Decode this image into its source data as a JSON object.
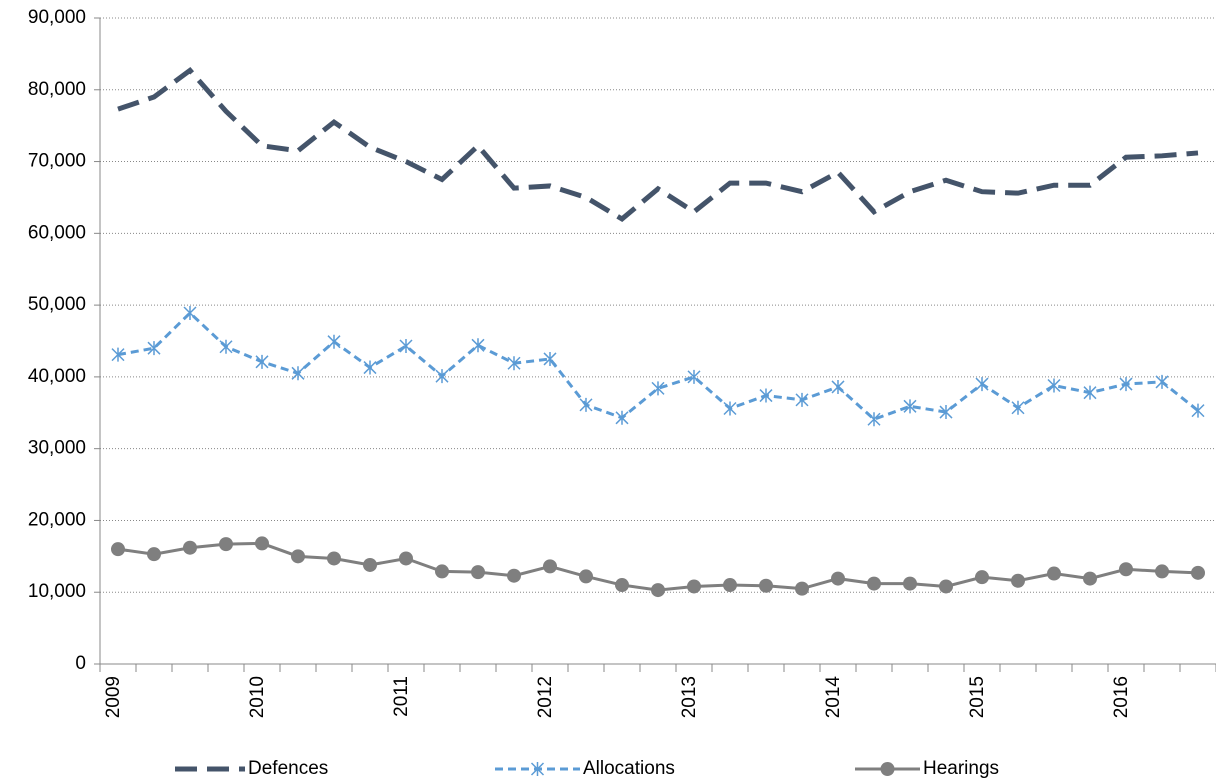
{
  "chart_data": {
    "type": "line",
    "categories": [
      "2009",
      null,
      null,
      null,
      "2010",
      null,
      null,
      null,
      "2011",
      null,
      null,
      null,
      "2012",
      null,
      null,
      null,
      "2013",
      null,
      null,
      null,
      "2014",
      null,
      null,
      null,
      "2015",
      null,
      null,
      null,
      "2016",
      null,
      null
    ],
    "series": [
      {
        "name": "Defences",
        "color": "#44546a",
        "line_style": "long-dash",
        "marker": "none",
        "values": [
          77300,
          79000,
          82700,
          77000,
          72200,
          71500,
          75500,
          72000,
          70000,
          67500,
          72200,
          66300,
          66600,
          65000,
          62000,
          66200,
          63000,
          67000,
          67000,
          65800,
          68500,
          63000,
          65800,
          67400,
          65800,
          65600,
          66700,
          66700,
          70600,
          70800,
          71200
        ]
      },
      {
        "name": "Allocations",
        "color": "#5b9bd5",
        "line_style": "dash",
        "marker": "star",
        "values": [
          43100,
          44000,
          48900,
          44200,
          42100,
          40500,
          44900,
          41300,
          44300,
          40100,
          44400,
          41900,
          42500,
          36100,
          34300,
          38400,
          40000,
          35600,
          37400,
          36800,
          38600,
          34100,
          35900,
          35100,
          39000,
          35700,
          38800,
          37800,
          39000,
          39300,
          35300
        ]
      },
      {
        "name": "Hearings",
        "color": "#7f7f7f",
        "line_style": "solid",
        "marker": "circle",
        "values": [
          16000,
          15300,
          16200,
          16700,
          16800,
          15000,
          14700,
          13800,
          14700,
          12900,
          12800,
          12300,
          13600,
          12200,
          11000,
          10300,
          10800,
          11000,
          10900,
          10500,
          11900,
          11200,
          11200,
          10800,
          12100,
          11600,
          12600,
          11900,
          13200,
          12900,
          12700
        ]
      }
    ],
    "ylim": [
      0,
      90000
    ],
    "yticks": [
      0,
      {
        "value": 10000,
        "label": "10,000"
      },
      {
        "value": 20000,
        "label": "20,000"
      },
      {
        "value": 30000,
        "label": "30,000"
      },
      {
        "value": 40000,
        "label": "40,000"
      },
      {
        "value": 50000,
        "label": "50,000"
      },
      {
        "value": 60000,
        "label": "60,000"
      },
      {
        "value": 70000,
        "label": "70,000"
      },
      {
        "value": 80000,
        "label": "80,000"
      },
      {
        "value": 90000,
        "label": "90,000"
      }
    ],
    "grid": true,
    "legend": "bottom"
  }
}
